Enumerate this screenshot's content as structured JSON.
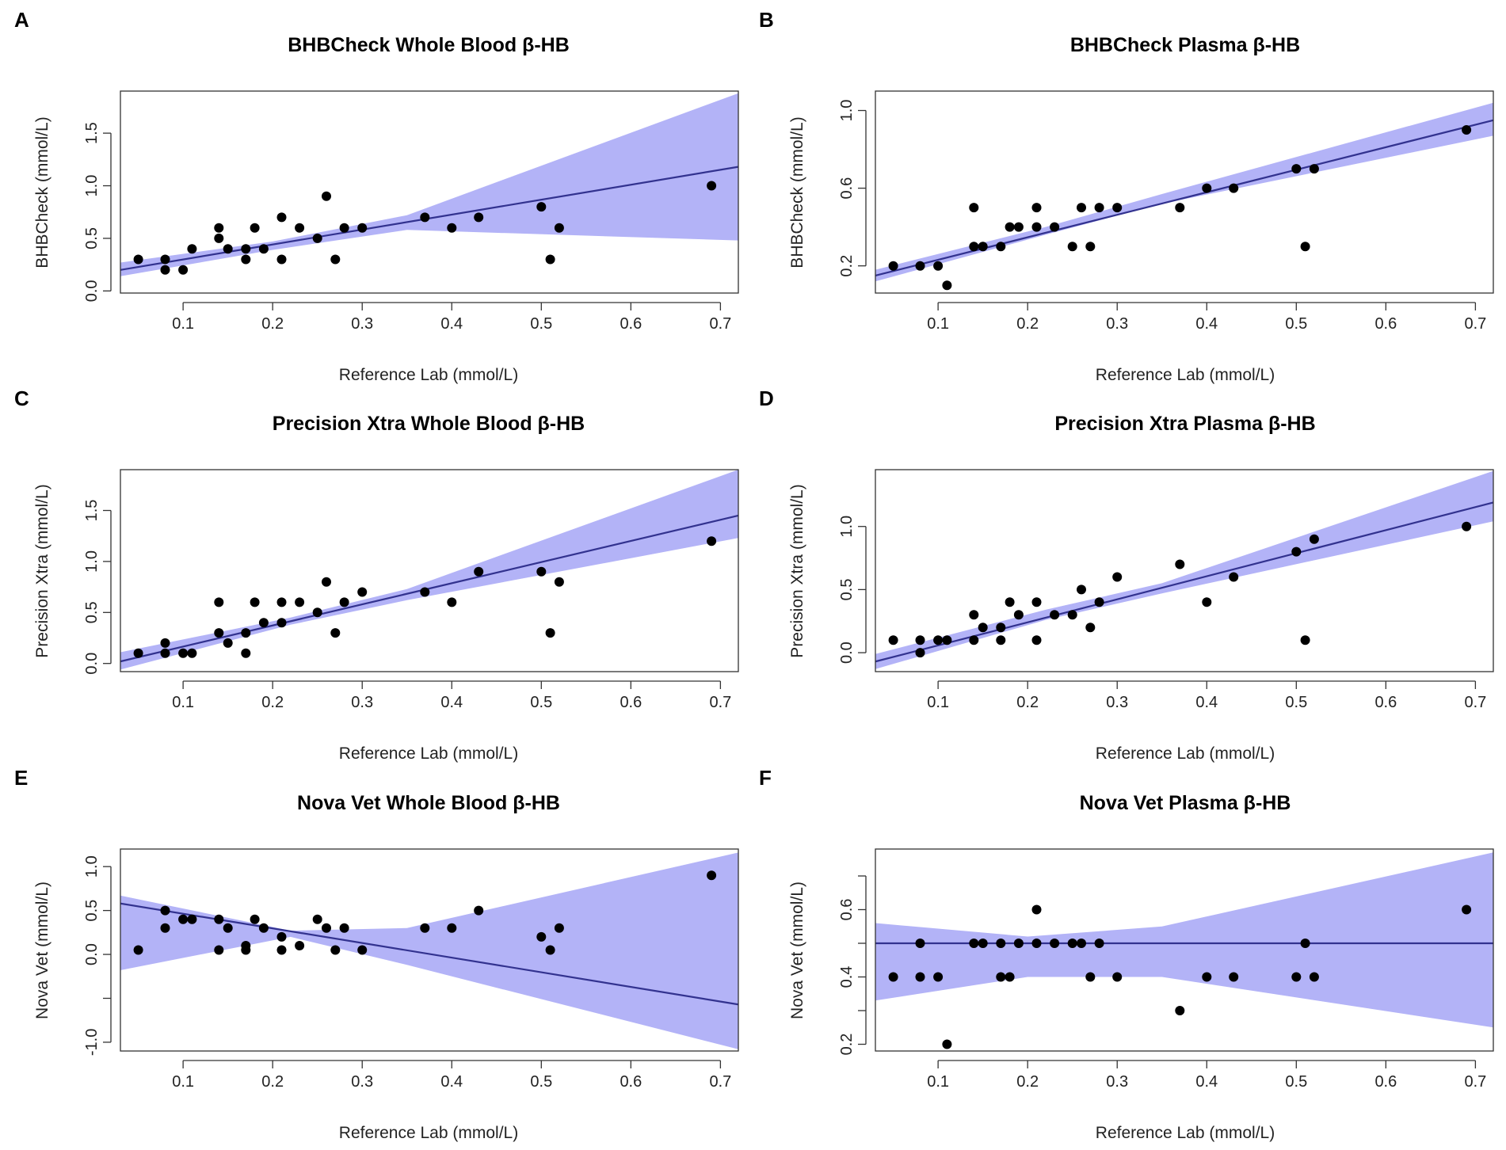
{
  "chart_data": [
    {
      "type": "scatter",
      "letter": "A",
      "title": "BHBCheck Whole Blood β-HB",
      "xlabel": "Reference Lab (mmol/L)",
      "ylabel": "BHBCheck (mmol/L)",
      "xlim": [
        0.03,
        0.72
      ],
      "ylim": [
        -0.02,
        1.9
      ],
      "xticks": [
        "0.1",
        "0.2",
        "0.3",
        "0.4",
        "0.5",
        "0.6",
        "0.7"
      ],
      "yticks": [
        "0.0",
        "0.5",
        "1.0",
        "1.5"
      ],
      "points": [
        [
          0.05,
          0.3
        ],
        [
          0.08,
          0.3
        ],
        [
          0.08,
          0.2
        ],
        [
          0.1,
          0.2
        ],
        [
          0.11,
          0.4
        ],
        [
          0.14,
          0.6
        ],
        [
          0.14,
          0.5
        ],
        [
          0.15,
          0.4
        ],
        [
          0.17,
          0.4
        ],
        [
          0.17,
          0.3
        ],
        [
          0.18,
          0.6
        ],
        [
          0.19,
          0.4
        ],
        [
          0.21,
          0.7
        ],
        [
          0.21,
          0.3
        ],
        [
          0.23,
          0.6
        ],
        [
          0.25,
          0.5
        ],
        [
          0.26,
          0.9
        ],
        [
          0.27,
          0.3
        ],
        [
          0.28,
          0.6
        ],
        [
          0.3,
          0.6
        ],
        [
          0.37,
          0.7
        ],
        [
          0.4,
          0.6
        ],
        [
          0.43,
          0.7
        ],
        [
          0.5,
          0.8
        ],
        [
          0.51,
          0.3
        ],
        [
          0.52,
          0.6
        ],
        [
          0.69,
          1.0
        ]
      ],
      "fit_line": [
        [
          0.03,
          0.2
        ],
        [
          0.72,
          1.18
        ]
      ],
      "confidence_band": {
        "x": [
          0.03,
          0.2,
          0.35,
          0.72
        ],
        "lower": [
          0.14,
          0.39,
          0.58,
          0.48
        ],
        "upper": [
          0.27,
          0.47,
          0.72,
          1.88
        ]
      }
    },
    {
      "type": "scatter",
      "letter": "B",
      "title": "BHBCheck Plasma β-HB",
      "xlabel": "Reference Lab (mmol/L)",
      "ylabel": "BHBCheck (mmol/L)",
      "xlim": [
        0.03,
        0.72
      ],
      "ylim": [
        0.06,
        1.1
      ],
      "xticks": [
        "0.1",
        "0.2",
        "0.3",
        "0.4",
        "0.5",
        "0.6",
        "0.7"
      ],
      "yticks": [
        "0.2",
        "0.6",
        "1.0"
      ],
      "points": [
        [
          0.05,
          0.2
        ],
        [
          0.08,
          0.2
        ],
        [
          0.1,
          0.2
        ],
        [
          0.11,
          0.1
        ],
        [
          0.14,
          0.5
        ],
        [
          0.14,
          0.3
        ],
        [
          0.15,
          0.3
        ],
        [
          0.17,
          0.3
        ],
        [
          0.18,
          0.4
        ],
        [
          0.19,
          0.4
        ],
        [
          0.21,
          0.5
        ],
        [
          0.21,
          0.4
        ],
        [
          0.23,
          0.4
        ],
        [
          0.25,
          0.3
        ],
        [
          0.26,
          0.5
        ],
        [
          0.27,
          0.3
        ],
        [
          0.28,
          0.5
        ],
        [
          0.3,
          0.5
        ],
        [
          0.37,
          0.5
        ],
        [
          0.4,
          0.6
        ],
        [
          0.43,
          0.6
        ],
        [
          0.5,
          0.7
        ],
        [
          0.51,
          0.3
        ],
        [
          0.52,
          0.7
        ],
        [
          0.69,
          0.9
        ]
      ],
      "fit_line": [
        [
          0.03,
          0.15
        ],
        [
          0.72,
          0.95
        ]
      ],
      "confidence_band": {
        "x": [
          0.03,
          0.22,
          0.35,
          0.72
        ],
        "lower": [
          0.12,
          0.36,
          0.52,
          0.87
        ],
        "upper": [
          0.18,
          0.4,
          0.57,
          1.04
        ]
      }
    },
    {
      "type": "scatter",
      "letter": "C",
      "title": "Precision Xtra Whole Blood β-HB",
      "xlabel": "Reference Lab (mmol/L)",
      "ylabel": "Precision Xtra (mmol/L)",
      "xlim": [
        0.03,
        0.72
      ],
      "ylim": [
        -0.08,
        1.9
      ],
      "xticks": [
        "0.1",
        "0.2",
        "0.3",
        "0.4",
        "0.5",
        "0.6",
        "0.7"
      ],
      "yticks": [
        "0.0",
        "0.5",
        "1.0",
        "1.5"
      ],
      "points": [
        [
          0.05,
          0.1
        ],
        [
          0.08,
          0.2
        ],
        [
          0.08,
          0.1
        ],
        [
          0.1,
          0.1
        ],
        [
          0.11,
          0.1
        ],
        [
          0.14,
          0.6
        ],
        [
          0.14,
          0.3
        ],
        [
          0.15,
          0.2
        ],
        [
          0.17,
          0.3
        ],
        [
          0.17,
          0.1
        ],
        [
          0.18,
          0.6
        ],
        [
          0.19,
          0.4
        ],
        [
          0.21,
          0.6
        ],
        [
          0.21,
          0.4
        ],
        [
          0.23,
          0.6
        ],
        [
          0.25,
          0.5
        ],
        [
          0.26,
          0.8
        ],
        [
          0.27,
          0.3
        ],
        [
          0.28,
          0.6
        ],
        [
          0.3,
          0.7
        ],
        [
          0.37,
          0.7
        ],
        [
          0.4,
          0.6
        ],
        [
          0.43,
          0.9
        ],
        [
          0.5,
          0.9
        ],
        [
          0.51,
          0.3
        ],
        [
          0.52,
          0.8
        ],
        [
          0.69,
          1.2
        ]
      ],
      "fit_line": [
        [
          0.03,
          0.02
        ],
        [
          0.72,
          1.45
        ]
      ],
      "confidence_band": {
        "x": [
          0.03,
          0.22,
          0.35,
          0.72
        ],
        "lower": [
          -0.06,
          0.38,
          0.62,
          1.23
        ],
        "upper": [
          0.11,
          0.45,
          0.73,
          1.9
        ]
      }
    },
    {
      "type": "scatter",
      "letter": "D",
      "title": "Precision Xtra Plasma β-HB",
      "xlabel": "Reference Lab (mmol/L)",
      "ylabel": "Precision Xtra (mmol/L)",
      "xlim": [
        0.03,
        0.72
      ],
      "ylim": [
        -0.15,
        1.45
      ],
      "xticks": [
        "0.1",
        "0.2",
        "0.3",
        "0.4",
        "0.5",
        "0.6",
        "0.7"
      ],
      "yticks": [
        "0.0",
        "0.5",
        "1.0"
      ],
      "points": [
        [
          0.05,
          0.1
        ],
        [
          0.08,
          0.1
        ],
        [
          0.08,
          0.0
        ],
        [
          0.1,
          0.1
        ],
        [
          0.11,
          0.1
        ],
        [
          0.14,
          0.3
        ],
        [
          0.14,
          0.1
        ],
        [
          0.15,
          0.2
        ],
        [
          0.17,
          0.2
        ],
        [
          0.17,
          0.1
        ],
        [
          0.18,
          0.4
        ],
        [
          0.19,
          0.3
        ],
        [
          0.21,
          0.4
        ],
        [
          0.21,
          0.1
        ],
        [
          0.23,
          0.3
        ],
        [
          0.25,
          0.3
        ],
        [
          0.26,
          0.5
        ],
        [
          0.27,
          0.2
        ],
        [
          0.28,
          0.4
        ],
        [
          0.3,
          0.6
        ],
        [
          0.37,
          0.7
        ],
        [
          0.4,
          0.4
        ],
        [
          0.43,
          0.6
        ],
        [
          0.5,
          0.8
        ],
        [
          0.51,
          0.1
        ],
        [
          0.52,
          0.9
        ],
        [
          0.69,
          1.0
        ]
      ],
      "fit_line": [
        [
          0.03,
          -0.07
        ],
        [
          0.72,
          1.19
        ]
      ],
      "confidence_band": {
        "x": [
          0.03,
          0.22,
          0.35,
          0.72
        ],
        "lower": [
          -0.13,
          0.26,
          0.47,
          1.04
        ],
        "upper": [
          -0.01,
          0.34,
          0.55,
          1.44
        ]
      }
    },
    {
      "type": "scatter",
      "letter": "E",
      "title": "Nova Vet Whole Blood β-HB",
      "xlabel": "Reference Lab (mmol/L)",
      "ylabel": "Nova Vet (mmol/L)",
      "xlim": [
        0.03,
        0.72
      ],
      "ylim": [
        -1.1,
        1.2
      ],
      "xticks": [
        "0.1",
        "0.2",
        "0.3",
        "0.4",
        "0.5",
        "0.6",
        "0.7"
      ],
      "yticks": [
        "-1.0",
        "-0.5",
        "0.0",
        "0.5",
        "1.0"
      ],
      "ytick_labels_shown": [
        "-1.0",
        "0.0",
        "0.5",
        "1.0"
      ],
      "points": [
        [
          0.05,
          0.05
        ],
        [
          0.08,
          0.5
        ],
        [
          0.08,
          0.3
        ],
        [
          0.1,
          0.4
        ],
        [
          0.11,
          0.4
        ],
        [
          0.14,
          0.4
        ],
        [
          0.14,
          0.05
        ],
        [
          0.15,
          0.3
        ],
        [
          0.17,
          0.1
        ],
        [
          0.17,
          0.05
        ],
        [
          0.18,
          0.4
        ],
        [
          0.19,
          0.3
        ],
        [
          0.21,
          0.2
        ],
        [
          0.21,
          0.05
        ],
        [
          0.23,
          0.1
        ],
        [
          0.25,
          0.4
        ],
        [
          0.26,
          0.3
        ],
        [
          0.27,
          0.05
        ],
        [
          0.28,
          0.3
        ],
        [
          0.3,
          0.05
        ],
        [
          0.37,
          0.3
        ],
        [
          0.4,
          0.3
        ],
        [
          0.43,
          0.5
        ],
        [
          0.5,
          0.2
        ],
        [
          0.51,
          0.05
        ],
        [
          0.52,
          0.3
        ],
        [
          0.69,
          0.9
        ]
      ],
      "fit_line": [
        [
          0.03,
          0.58
        ],
        [
          0.72,
          -0.57
        ]
      ],
      "confidence_band": {
        "x": [
          0.03,
          0.22,
          0.35,
          0.72
        ],
        "lower": [
          -0.18,
          0.2,
          -0.12,
          -1.08
        ],
        "upper": [
          0.67,
          0.27,
          0.3,
          1.16
        ]
      }
    },
    {
      "type": "scatter",
      "letter": "F",
      "title": "Nova Vet Plasma β-HB",
      "xlabel": "Reference Lab (mmol/L)",
      "ylabel": "Nova Vet (mmol/L)",
      "xlim": [
        0.03,
        0.72
      ],
      "ylim": [
        0.18,
        0.78
      ],
      "xticks": [
        "0.1",
        "0.2",
        "0.3",
        "0.4",
        "0.5",
        "0.6",
        "0.7"
      ],
      "yticks": [
        "0.2",
        "0.3",
        "0.4",
        "0.5",
        "0.6",
        "0.7"
      ],
      "ytick_labels_shown": [
        "0.2",
        "0.4",
        "0.6"
      ],
      "points": [
        [
          0.05,
          0.4
        ],
        [
          0.08,
          0.5
        ],
        [
          0.08,
          0.4
        ],
        [
          0.1,
          0.4
        ],
        [
          0.11,
          0.2
        ],
        [
          0.14,
          0.5
        ],
        [
          0.15,
          0.5
        ],
        [
          0.17,
          0.5
        ],
        [
          0.17,
          0.4
        ],
        [
          0.18,
          0.4
        ],
        [
          0.19,
          0.5
        ],
        [
          0.21,
          0.6
        ],
        [
          0.21,
          0.5
        ],
        [
          0.23,
          0.5
        ],
        [
          0.25,
          0.5
        ],
        [
          0.26,
          0.5
        ],
        [
          0.27,
          0.4
        ],
        [
          0.28,
          0.5
        ],
        [
          0.3,
          0.4
        ],
        [
          0.37,
          0.3
        ],
        [
          0.4,
          0.4
        ],
        [
          0.43,
          0.4
        ],
        [
          0.5,
          0.4
        ],
        [
          0.51,
          0.5
        ],
        [
          0.52,
          0.4
        ],
        [
          0.69,
          0.6
        ]
      ],
      "fit_line": [
        [
          0.03,
          0.5
        ],
        [
          0.72,
          0.5
        ]
      ],
      "confidence_band": {
        "x": [
          0.03,
          0.2,
          0.35,
          0.72
        ],
        "lower": [
          0.33,
          0.4,
          0.4,
          0.25
        ],
        "upper": [
          0.56,
          0.52,
          0.55,
          0.77
        ]
      }
    }
  ]
}
